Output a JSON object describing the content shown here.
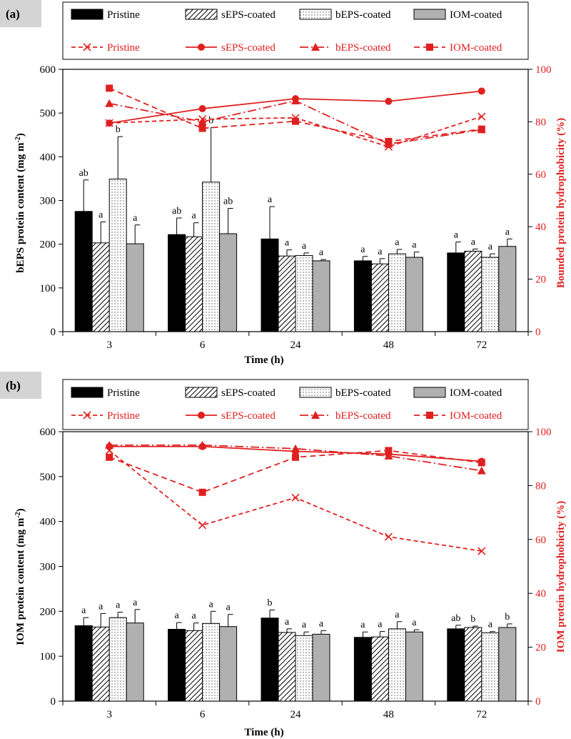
{
  "colors": {
    "accent": "#e02020",
    "black": "#000000",
    "iom_fill": "#b0b0b0"
  },
  "legend": {
    "bars": [
      "Pristine",
      "sEPS-coated",
      "bEPS-coated",
      "IOM-coated"
    ],
    "lines": [
      "Pristine",
      "sEPS-coated",
      "bEPS-coated",
      "IOM-coated"
    ]
  },
  "chart_data": [
    {
      "panel_label": "(a)",
      "type": "bar",
      "categories": [
        "3",
        "6",
        "24",
        "48",
        "72"
      ],
      "xlabel": "Time (h)",
      "ylabel": "bEPS protein content (mg m",
      "ylabel_sup": "-2",
      "ylabel_close": ")",
      "y2label": "Bounded protein hydrophobicity (%)",
      "ylim": [
        0,
        600
      ],
      "y_ticks": [
        "0",
        "100",
        "200",
        "300",
        "400",
        "500",
        "600"
      ],
      "y2lim": [
        0,
        100
      ],
      "y2_ticks": [
        "0",
        "20",
        "40",
        "60",
        "80",
        "100"
      ],
      "bar_series": [
        {
          "name": "Pristine",
          "values": [
            275,
            222,
            212,
            162,
            180
          ],
          "errors": [
            72,
            38,
            74,
            10,
            25
          ],
          "labels": [
            "ab",
            "ab",
            "a",
            "a",
            "a"
          ]
        },
        {
          "name": "sEPS-coated",
          "values": [
            203,
            217,
            173,
            155,
            184
          ],
          "errors": [
            48,
            32,
            14,
            12,
            5
          ],
          "labels": [
            "a",
            "a",
            "a",
            "a",
            "a"
          ]
        },
        {
          "name": "bEPS-coated",
          "values": [
            349,
            342,
            174,
            178,
            170
          ],
          "errors": [
            97,
            125,
            6,
            10,
            8
          ],
          "labels": [
            "b",
            "b",
            "a",
            "a",
            "a"
          ]
        },
        {
          "name": "IOM-coated",
          "values": [
            201,
            224,
            162,
            170,
            195
          ],
          "errors": [
            43,
            58,
            3,
            12,
            17
          ],
          "labels": [
            "a",
            "ab",
            "a",
            "a",
            "a"
          ]
        }
      ],
      "line_series": [
        {
          "name": "Pristine",
          "values": [
            79.5,
            81,
            81.5,
            70.5,
            82
          ]
        },
        {
          "name": "sEPS-coated",
          "values": [
            79.5,
            85,
            88.8,
            87.8,
            91.7
          ]
        },
        {
          "name": "bEPS-coated",
          "values": [
            87,
            80,
            88,
            71.5,
            77
          ]
        },
        {
          "name": "IOM-coated",
          "values": [
            92.8,
            77.5,
            80.2,
            72.5,
            77.2
          ]
        }
      ]
    },
    {
      "panel_label": "(b)",
      "type": "bar",
      "categories": [
        "3",
        "6",
        "24",
        "48",
        "72"
      ],
      "xlabel": "Time (h)",
      "ylabel": "IOM protein content (mg m",
      "ylabel_sup": "-2",
      "ylabel_close": ")",
      "y2label": "IOM protein hydrophobicity (%)",
      "ylim": [
        0,
        600
      ],
      "y_ticks": [
        "0",
        "100",
        "200",
        "300",
        "400",
        "500",
        "600"
      ],
      "y2lim": [
        0,
        100
      ],
      "y2_ticks": [
        "0",
        "20",
        "40",
        "60",
        "80",
        "100"
      ],
      "bar_series": [
        {
          "name": "Pristine",
          "values": [
            168,
            160,
            185,
            142,
            161
          ],
          "errors": [
            18,
            15,
            18,
            12,
            8
          ],
          "labels": [
            "a",
            "a",
            "b",
            "a",
            "ab"
          ]
        },
        {
          "name": "sEPS-coated",
          "values": [
            165,
            157,
            153,
            143,
            164
          ],
          "errors": [
            30,
            17,
            8,
            12,
            3
          ],
          "labels": [
            "a",
            "a",
            "a",
            "a",
            "b"
          ]
        },
        {
          "name": "bEPS-coated",
          "values": [
            186,
            173,
            146,
            161,
            152
          ],
          "errors": [
            12,
            27,
            8,
            16,
            3
          ],
          "labels": [
            "a",
            "a",
            "a",
            "a",
            "a"
          ]
        },
        {
          "name": "IOM-coated",
          "values": [
            174,
            166,
            149,
            154,
            164
          ],
          "errors": [
            30,
            27,
            8,
            5,
            8
          ],
          "labels": [
            "a",
            "a",
            "a",
            "a",
            "b"
          ]
        }
      ],
      "line_series": [
        {
          "name": "Pristine",
          "values": [
            93,
            65.3,
            75.5,
            61,
            55.7
          ]
        },
        {
          "name": "sEPS-coated",
          "values": [
            94.5,
            94.5,
            92.7,
            91.7,
            89
          ]
        },
        {
          "name": "bEPS-coated",
          "values": [
            95,
            95,
            93.7,
            91,
            85.5
          ]
        },
        {
          "name": "IOM-coated",
          "values": [
            90.5,
            77.5,
            90.5,
            93,
            88.5
          ]
        }
      ]
    }
  ]
}
